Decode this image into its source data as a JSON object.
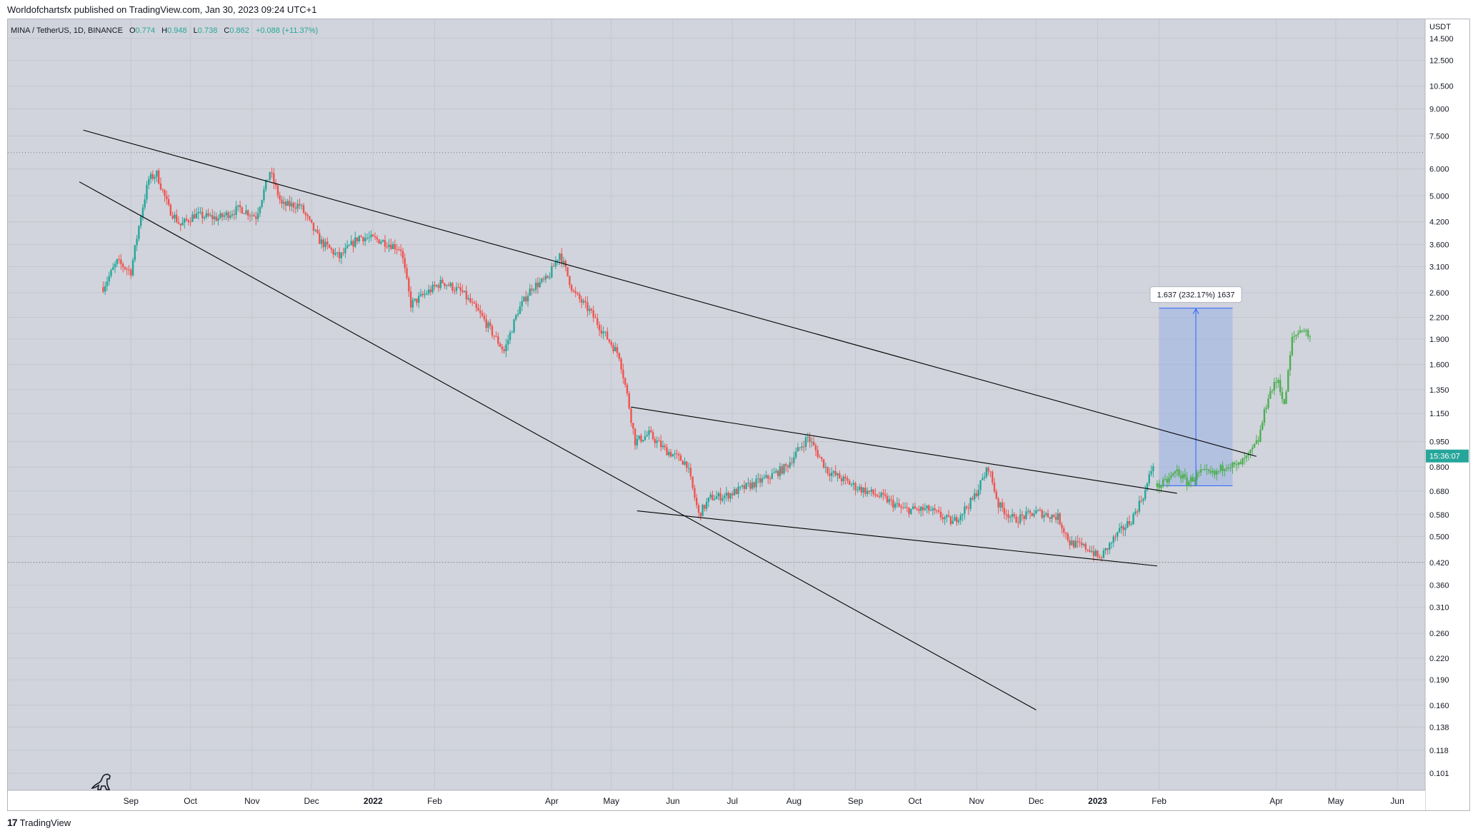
{
  "header": {
    "publisher_line": "Worldofchartsfx published on TradingView.com, Jan 30, 2023 09:24 UTC+1"
  },
  "legend": {
    "symbol_line": "MINA / TetherUS, 1D, BINANCE",
    "o_label": "O",
    "o_value": "0.774",
    "h_label": "H",
    "h_value": "0.948",
    "l_label": "L",
    "l_value": "0.738",
    "c_label": "C",
    "c_value": "0.862",
    "change": "+0.088 (+11.37%)"
  },
  "footer": {
    "brand": "TradingView"
  },
  "colors": {
    "background": "#d1d4dc",
    "up": "#26a69a",
    "down": "#ef5350",
    "projection": "#4caf50",
    "trendline": "#000000",
    "measure_fill": "#9bb1e6",
    "measure_line": "#2962ff",
    "price_tag": "#26a69a",
    "grid": "#c4c7cf"
  },
  "chart_data": {
    "type": "candlestick",
    "title": "",
    "currency_label": "USDT",
    "log_scale": true,
    "grid": true,
    "y_tick_labels": [
      "14.500",
      "12.500",
      "10.500",
      "9.000",
      "7.500",
      "6.000",
      "5.000",
      "4.200",
      "3.600",
      "3.100",
      "2.600",
      "2.200",
      "1.900",
      "1.600",
      "1.350",
      "1.150",
      "0.950",
      "0.800",
      "0.680",
      "0.580",
      "0.500",
      "0.420",
      "0.360",
      "0.310",
      "0.260",
      "0.220",
      "0.190",
      "0.160",
      "0.138",
      "0.118",
      "0.101"
    ],
    "x_tick_labels": [
      "Sep",
      "Oct",
      "Nov",
      "Dec",
      "2022",
      "Feb",
      "Apr",
      "May",
      "Jun",
      "Jul",
      "Aug",
      "Sep",
      "Oct",
      "Nov",
      "Dec",
      "2023",
      "Feb",
      "Apr",
      "May",
      "Jun"
    ],
    "x_tick_dates": [
      "2021-09-01",
      "2021-10-01",
      "2021-11-01",
      "2021-12-01",
      "2022-01-01",
      "2022-02-01",
      "2022-04-01",
      "2022-05-01",
      "2022-06-01",
      "2022-07-01",
      "2022-08-01",
      "2022-09-01",
      "2022-10-01",
      "2022-11-01",
      "2022-12-01",
      "2023-01-01",
      "2023-02-01",
      "2023-04-01",
      "2023-05-01",
      "2023-06-01"
    ],
    "x_range": [
      "2021-07-01",
      "2023-06-15"
    ],
    "y_range": [
      0.09,
      16.5
    ],
    "price_path": [
      [
        "2021-08-18",
        2.7
      ],
      [
        "2021-08-25",
        3.2
      ],
      [
        "2021-09-01",
        3.0
      ],
      [
        "2021-09-06",
        4.4
      ],
      [
        "2021-09-10",
        5.6
      ],
      [
        "2021-09-14",
        5.8
      ],
      [
        "2021-09-20",
        4.6
      ],
      [
        "2021-09-26",
        4.1
      ],
      [
        "2021-10-03",
        4.4
      ],
      [
        "2021-10-15",
        4.3
      ],
      [
        "2021-10-26",
        4.6
      ],
      [
        "2021-11-03",
        4.35
      ],
      [
        "2021-11-10",
        5.9
      ],
      [
        "2021-11-16",
        4.7
      ],
      [
        "2021-11-25",
        4.7
      ],
      [
        "2021-12-05",
        3.7
      ],
      [
        "2021-12-15",
        3.3
      ],
      [
        "2021-12-25",
        3.8
      ],
      [
        "2022-01-05",
        3.7
      ],
      [
        "2022-01-15",
        3.5
      ],
      [
        "2022-01-20",
        2.4
      ],
      [
        "2022-01-28",
        2.6
      ],
      [
        "2022-02-05",
        2.8
      ],
      [
        "2022-02-15",
        2.6
      ],
      [
        "2022-02-25",
        2.2
      ],
      [
        "2022-03-08",
        1.75
      ],
      [
        "2022-03-15",
        2.3
      ],
      [
        "2022-03-22",
        2.7
      ],
      [
        "2022-03-30",
        2.85
      ],
      [
        "2022-04-05",
        3.4
      ],
      [
        "2022-04-12",
        2.6
      ],
      [
        "2022-04-20",
        2.3
      ],
      [
        "2022-04-28",
        1.95
      ],
      [
        "2022-05-05",
        1.7
      ],
      [
        "2022-05-09",
        1.3
      ],
      [
        "2022-05-13",
        0.95
      ],
      [
        "2022-05-20",
        1.0
      ],
      [
        "2022-05-28",
        0.9
      ],
      [
        "2022-06-08",
        0.82
      ],
      [
        "2022-06-14",
        0.58
      ],
      [
        "2022-06-20",
        0.65
      ],
      [
        "2022-06-28",
        0.66
      ],
      [
        "2022-07-08",
        0.7
      ],
      [
        "2022-07-18",
        0.74
      ],
      [
        "2022-07-28",
        0.8
      ],
      [
        "2022-08-08",
        0.98
      ],
      [
        "2022-08-18",
        0.78
      ],
      [
        "2022-09-01",
        0.7
      ],
      [
        "2022-09-15",
        0.65
      ],
      [
        "2022-09-25",
        0.6
      ],
      [
        "2022-10-08",
        0.6
      ],
      [
        "2022-10-20",
        0.55
      ],
      [
        "2022-10-30",
        0.64
      ],
      [
        "2022-11-07",
        0.8
      ],
      [
        "2022-11-12",
        0.62
      ],
      [
        "2022-11-20",
        0.56
      ],
      [
        "2022-12-01",
        0.59
      ],
      [
        "2022-12-12",
        0.57
      ],
      [
        "2022-12-18",
        0.48
      ],
      [
        "2022-12-28",
        0.46
      ],
      [
        "2023-01-02",
        0.43
      ],
      [
        "2023-01-10",
        0.5
      ],
      [
        "2023-01-18",
        0.56
      ],
      [
        "2023-01-25",
        0.68
      ],
      [
        "2023-01-30",
        0.86
      ]
    ],
    "projection_path": [
      [
        "2023-01-31",
        0.7
      ],
      [
        "2023-02-04",
        0.72
      ],
      [
        "2023-02-10",
        0.78
      ],
      [
        "2023-02-15",
        0.72
      ],
      [
        "2023-02-22",
        0.77
      ],
      [
        "2023-03-01",
        0.76
      ],
      [
        "2023-03-07",
        0.82
      ],
      [
        "2023-03-12",
        0.8
      ],
      [
        "2023-03-18",
        0.86
      ],
      [
        "2023-03-23",
        0.96
      ],
      [
        "2023-03-28",
        1.3
      ],
      [
        "2023-04-02",
        1.45
      ],
      [
        "2023-04-05",
        1.2
      ],
      [
        "2023-04-09",
        1.9
      ],
      [
        "2023-04-14",
        2.05
      ],
      [
        "2023-04-19",
        1.9
      ]
    ],
    "trendlines": [
      {
        "from": [
          "2021-08-08",
          7.8
        ],
        "to": [
          "2023-03-22",
          0.86
        ]
      },
      {
        "from": [
          "2021-08-06",
          5.5
        ],
        "to": [
          "2022-12-01",
          0.155
        ]
      },
      {
        "from": [
          "2022-05-11",
          1.2
        ],
        "to": [
          "2023-02-10",
          0.67
        ]
      },
      {
        "from": [
          "2022-05-14",
          0.595
        ],
        "to": [
          "2023-01-31",
          0.41
        ]
      }
    ],
    "horizontal_levels": [
      6.7,
      0.42
    ],
    "measure": {
      "from_date": "2023-02-01",
      "to_date": "2023-03-10",
      "low": 0.705,
      "high": 2.342,
      "label": "1.637 (232.17%) 1637"
    },
    "last_price_tag": {
      "value": 0.862,
      "label": "15:36:07"
    }
  }
}
